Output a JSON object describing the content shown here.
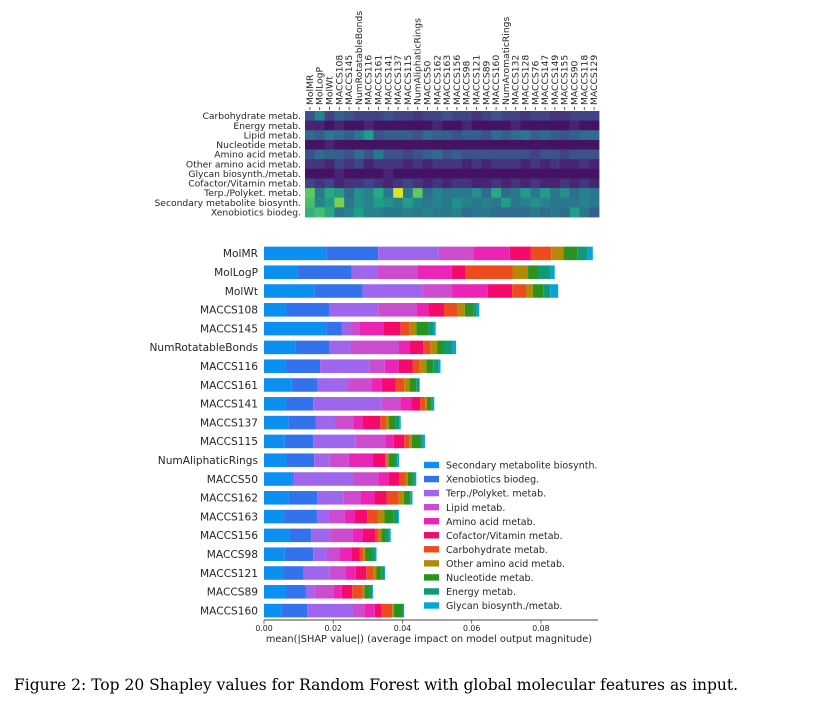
{
  "caption": "Figure 2: Top 20 Shapley values for Random Forest with global molecular features as input.",
  "colors": {
    "Secondary metabolite biosynth.": "#0b8ff0",
    "Xenobiotics biodeg.": "#3272ec",
    "Terp./Polyket. metab.": "#9d66ec",
    "Lipid metab.": "#cc4cd0",
    "Amino acid metab.": "#ec24b6",
    "Cofactor/Vitamin metab.": "#f5096a",
    "Carbohydrate metab.": "#ec4c1e",
    "Other amino acid metab.": "#b38a08",
    "Nucleotide metab.": "#2a9320",
    "Energy metab.": "#0f9a7a",
    "Glycan biosynth./metab.": "#07a4db"
  },
  "heatmap": {
    "rows": [
      "Carbohydrate metab.",
      "Energy metab.",
      "Lipid metab.",
      "Nucleotide metab.",
      "Amino acid metab.",
      "Other amino acid metab.",
      "Glycan biosynth./metab.",
      "Cofactor/Vitamin metab.",
      "Terp./Polyket. metab.",
      "Secondary metabolite biosynth.",
      "Xenobiotics biodeg."
    ],
    "columns": [
      "MolMR",
      "MolLogP",
      "MolWt",
      "MACCS108",
      "MACCS145",
      "NumRotatableBonds",
      "MACCS116",
      "MACCS161",
      "MACCS141",
      "MACCS137",
      "MACCS115",
      "NumAliphaticRings",
      "MACCS50",
      "MACCS162",
      "MACCS163",
      "MACCS156",
      "MACCS98",
      "MACCS121",
      "MACCS89",
      "MACCS160",
      "NumAromaticRings",
      "MACCS132",
      "MACCS128",
      "MACCS76",
      "MACCS147",
      "MACCS149",
      "MACCS155",
      "MACCS90",
      "MACCS118",
      "MACCS129"
    ],
    "values": [
      [
        0.25,
        0.45,
        0.2,
        0.3,
        0.25,
        0.2,
        0.2,
        0.2,
        0.25,
        0.2,
        0.2,
        0.15,
        0.2,
        0.2,
        0.25,
        0.2,
        0.2,
        0.15,
        0.2,
        0.25,
        0.2,
        0.2,
        0.15,
        0.2,
        0.2,
        0.15,
        0.15,
        0.2,
        0.2,
        0.2
      ],
      [
        0.1,
        0.1,
        0.05,
        0.1,
        0.05,
        0.05,
        0.1,
        0.05,
        0.05,
        0.05,
        0.05,
        0.05,
        0.05,
        0.1,
        0.05,
        0.05,
        0.1,
        0.05,
        0.05,
        0.05,
        0.05,
        0.1,
        0.05,
        0.05,
        0.05,
        0.05,
        0.05,
        0.1,
        0.05,
        0.05
      ],
      [
        0.35,
        0.3,
        0.4,
        0.35,
        0.3,
        0.4,
        0.55,
        0.25,
        0.3,
        0.3,
        0.3,
        0.25,
        0.35,
        0.3,
        0.3,
        0.25,
        0.3,
        0.3,
        0.25,
        0.35,
        0.3,
        0.35,
        0.4,
        0.3,
        0.35,
        0.3,
        0.25,
        0.3,
        0.35,
        0.35
      ],
      [
        0.05,
        0.05,
        0.1,
        0.05,
        0.05,
        0.05,
        0.05,
        0.05,
        0.05,
        0.05,
        0.05,
        0.05,
        0.05,
        0.05,
        0.05,
        0.05,
        0.05,
        0.05,
        0.05,
        0.05,
        0.05,
        0.05,
        0.05,
        0.05,
        0.05,
        0.05,
        0.05,
        0.05,
        0.05,
        0.05
      ],
      [
        0.25,
        0.35,
        0.3,
        0.3,
        0.25,
        0.35,
        0.25,
        0.4,
        0.25,
        0.25,
        0.2,
        0.25,
        0.3,
        0.35,
        0.25,
        0.3,
        0.25,
        0.25,
        0.25,
        0.25,
        0.25,
        0.25,
        0.25,
        0.2,
        0.25,
        0.25,
        0.2,
        0.25,
        0.25,
        0.25
      ],
      [
        0.15,
        0.15,
        0.1,
        0.2,
        0.15,
        0.2,
        0.1,
        0.15,
        0.15,
        0.15,
        0.1,
        0.15,
        0.1,
        0.15,
        0.15,
        0.15,
        0.1,
        0.15,
        0.1,
        0.15,
        0.15,
        0.15,
        0.1,
        0.15,
        0.1,
        0.15,
        0.1,
        0.1,
        0.15,
        0.1
      ],
      [
        0.05,
        0.05,
        0.05,
        0.1,
        0.05,
        0.05,
        0.05,
        0.05,
        0.1,
        0.05,
        0.05,
        0.05,
        0.05,
        0.05,
        0.05,
        0.05,
        0.05,
        0.05,
        0.05,
        0.05,
        0.05,
        0.05,
        0.05,
        0.05,
        0.05,
        0.05,
        0.05,
        0.05,
        0.05,
        0.05
      ],
      [
        0.2,
        0.15,
        0.2,
        0.1,
        0.15,
        0.15,
        0.2,
        0.15,
        0.1,
        0.15,
        0.2,
        0.15,
        0.1,
        0.15,
        0.1,
        0.15,
        0.15,
        0.1,
        0.1,
        0.15,
        0.1,
        0.15,
        0.1,
        0.15,
        0.1,
        0.1,
        0.15,
        0.1,
        0.15,
        0.1
      ],
      [
        0.75,
        0.4,
        0.6,
        0.55,
        0.35,
        0.5,
        0.45,
        0.6,
        0.4,
        0.95,
        0.4,
        0.75,
        0.35,
        0.45,
        0.4,
        0.4,
        0.4,
        0.5,
        0.35,
        0.6,
        0.35,
        0.4,
        0.55,
        0.4,
        0.55,
        0.4,
        0.5,
        0.35,
        0.45,
        0.4
      ],
      [
        0.7,
        0.45,
        0.55,
        0.8,
        0.4,
        0.5,
        0.45,
        0.55,
        0.5,
        0.45,
        0.55,
        0.45,
        0.4,
        0.45,
        0.4,
        0.5,
        0.45,
        0.4,
        0.45,
        0.4,
        0.55,
        0.4,
        0.45,
        0.5,
        0.45,
        0.4,
        0.4,
        0.4,
        0.45,
        0.4
      ],
      [
        0.65,
        0.7,
        0.6,
        0.4,
        0.45,
        0.55,
        0.45,
        0.45,
        0.4,
        0.4,
        0.45,
        0.4,
        0.45,
        0.4,
        0.4,
        0.45,
        0.35,
        0.4,
        0.4,
        0.35,
        0.35,
        0.35,
        0.35,
        0.4,
        0.35,
        0.4,
        0.35,
        0.55,
        0.4,
        0.3
      ]
    ]
  },
  "chart_data": {
    "type": "bar",
    "orientation": "horizontal",
    "stacked": true,
    "xlabel": "mean(|SHAP value|) (average impact on model output magnitude)",
    "xlim": [
      0,
      0.0965
    ],
    "xticks": [
      "0.00",
      "0.02",
      "0.04",
      "0.06",
      "0.08"
    ],
    "xtick_values": [
      0,
      0.02,
      0.04,
      0.06,
      0.08
    ],
    "legend_position": "lower-right",
    "categories": [
      "MolMR",
      "MolLogP",
      "MolWt",
      "MACCS108",
      "MACCS145",
      "NumRotatableBonds",
      "MACCS116",
      "MACCS161",
      "MACCS141",
      "MACCS137",
      "MACCS115",
      "NumAliphaticRings",
      "MACCS50",
      "MACCS162",
      "MACCS163",
      "MACCS156",
      "MACCS98",
      "MACCS121",
      "MACCS89",
      "MACCS160"
    ],
    "series": [
      {
        "name": "Secondary metabolite biosynth.",
        "values": [
          0.018,
          0.0098,
          0.0145,
          0.0065,
          0.018,
          0.009,
          0.0062,
          0.008,
          0.0062,
          0.007,
          0.006,
          0.0065,
          0.008,
          0.0072,
          0.0058,
          0.0075,
          0.006,
          0.0055,
          0.0065,
          0.005
        ]
      },
      {
        "name": "Xenobiotics biodeg.",
        "values": [
          0.015,
          0.0155,
          0.014,
          0.0125,
          0.0045,
          0.01,
          0.01,
          0.0075,
          0.008,
          0.008,
          0.0082,
          0.008,
          0.0005,
          0.0082,
          0.0095,
          0.0061,
          0.0082,
          0.006,
          0.0055,
          0.0075
        ]
      },
      {
        "name": "Terp./Polyket. metab.",
        "values": [
          0.0175,
          0.0075,
          0.0172,
          0.014,
          0.0025,
          0.006,
          0.0142,
          0.0085,
          0.0197,
          0.0055,
          0.0123,
          0.0045,
          0.0175,
          0.0075,
          0.0035,
          0.0055,
          0.004,
          0.0075,
          0.0025,
          0.0135
        ]
      },
      {
        "name": "Lipid metab.",
        "values": [
          0.01,
          0.0115,
          0.0085,
          0.011,
          0.0025,
          0.014,
          0.0045,
          0.007,
          0.0055,
          0.0055,
          0.0085,
          0.0055,
          0.007,
          0.005,
          0.0045,
          0.0065,
          0.0035,
          0.0045,
          0.0055,
          0.003
        ]
      },
      {
        "name": "Amino acid metab.",
        "values": [
          0.0105,
          0.01,
          0.0105,
          0.0035,
          0.007,
          0.003,
          0.004,
          0.003,
          0.0032,
          0.0026,
          0.0025,
          0.007,
          0.003,
          0.004,
          0.003,
          0.003,
          0.0035,
          0.003,
          0.0025,
          0.003
        ]
      },
      {
        "name": "Cofactor/Vitamin metab.",
        "values": [
          0.006,
          0.004,
          0.007,
          0.0045,
          0.005,
          0.004,
          0.004,
          0.004,
          0.0025,
          0.005,
          0.003,
          0.0035,
          0.003,
          0.0035,
          0.0035,
          0.0035,
          0.0025,
          0.003,
          0.003,
          0.002
        ]
      },
      {
        "name": "Carbohydrate metab.",
        "values": [
          0.006,
          0.0135,
          0.004,
          0.004,
          0.0025,
          0.002,
          0.002,
          0.0025,
          0.0015,
          0.0015,
          0.0015,
          0.0005,
          0.002,
          0.0035,
          0.003,
          0.001,
          0.001,
          0.002,
          0.003,
          0.003
        ]
      },
      {
        "name": "Other amino acid metab.",
        "values": [
          0.0035,
          0.0045,
          0.002,
          0.002,
          0.002,
          0.002,
          0.002,
          0.0015,
          0.0005,
          0.001,
          0.0007,
          0.0005,
          0.0005,
          0.0015,
          0.002,
          0.0008,
          0.0005,
          0.001,
          0.0005,
          0.0005
        ]
      },
      {
        "name": "Nucleotide metab.",
        "values": [
          0.004,
          0.003,
          0.003,
          0.0025,
          0.0035,
          0.002,
          0.002,
          0.002,
          0.0012,
          0.002,
          0.0025,
          0.002,
          0.0015,
          0.0015,
          0.0025,
          0.0012,
          0.002,
          0.0015,
          0.0015,
          0.0025
        ]
      },
      {
        "name": "Energy metab.",
        "values": [
          0.003,
          0.0035,
          0.002,
          0.001,
          0.0015,
          0.0025,
          0.0015,
          0.0008,
          0.0005,
          0.001,
          0.0007,
          0.0005,
          0.0005,
          0.0005,
          0.0015,
          0.001,
          0.001,
          0.0008,
          0.0008,
          0.0003
        ]
      },
      {
        "name": "Glycan biosynth./metab.",
        "values": [
          0.0015,
          0.0012,
          0.0023,
          0.0007,
          0.0006,
          0.001,
          0.0006,
          0.0002,
          0.0004,
          0.0004,
          0.0006,
          0.0005,
          0.0005,
          0.0005,
          0.0002,
          0.0005,
          0.0003,
          0.0002,
          0.0002,
          0.0002
        ]
      }
    ]
  }
}
